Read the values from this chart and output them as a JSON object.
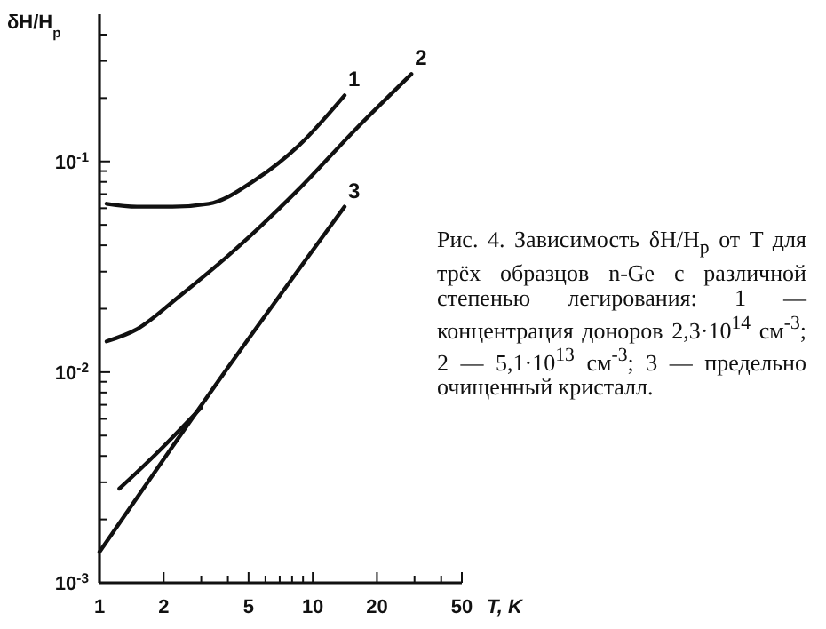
{
  "chart_data": {
    "type": "line",
    "xlabel": "T, K",
    "ylabel": "δH/H$_{p}$",
    "log": "xy",
    "grid": false,
    "legend": false,
    "marker": "none",
    "line_style": "solid",
    "xlim": [
      1,
      50
    ],
    "ylim": [
      0.001,
      0.5
    ],
    "xticks": [
      1,
      2,
      {
        "value": 3,
        "label": null
      },
      {
        "value": 4,
        "label": null
      },
      5,
      {
        "value": 6,
        "label": null
      },
      {
        "value": 7,
        "label": null
      },
      {
        "value": 8,
        "label": null
      },
      {
        "value": 9,
        "label": null
      },
      10,
      20,
      {
        "value": 30,
        "label": null
      },
      {
        "value": 40,
        "label": null
      },
      50
    ],
    "yticks": [
      {
        "value": 0.001,
        "label": "10$^{-3}$"
      },
      {
        "value": 0.002,
        "label": null
      },
      {
        "value": 0.003,
        "label": null
      },
      {
        "value": 0.004,
        "label": null
      },
      {
        "value": 0.005,
        "label": null
      },
      {
        "value": 0.006,
        "label": null
      },
      {
        "value": 0.007,
        "label": null
      },
      {
        "value": 0.008,
        "label": null
      },
      {
        "value": 0.009,
        "label": null
      },
      {
        "value": 0.01,
        "label": "10$^{-2}$"
      },
      {
        "value": 0.02,
        "label": null
      },
      {
        "value": 0.03,
        "label": null
      },
      {
        "value": 0.04,
        "label": null
      },
      {
        "value": 0.05,
        "label": null
      },
      {
        "value": 0.06,
        "label": null
      },
      {
        "value": 0.07,
        "label": null
      },
      {
        "value": 0.08,
        "label": null
      },
      {
        "value": 0.09,
        "label": null
      },
      {
        "value": 0.1,
        "label": "10$^{-1}$"
      },
      {
        "value": 0.2,
        "label": null
      },
      {
        "value": 0.3,
        "label": null
      },
      {
        "value": 0.4,
        "label": null
      }
    ],
    "series": [
      {
        "name": "1",
        "color": "#111111",
        "x": [
          1.08,
          1.5,
          2.2,
          3.25,
          5.4,
          8.6,
          14.1
        ],
        "values": [
          0.063,
          0.061,
          0.061,
          0.063,
          0.082,
          0.119,
          0.206
        ]
      },
      {
        "name": "2",
        "color": "#111111",
        "x": [
          1.08,
          1.5,
          2.34,
          4.43,
          8.5,
          16.2,
          29
        ],
        "values": [
          0.014,
          0.016,
          0.0227,
          0.039,
          0.073,
          0.145,
          0.26
        ]
      },
      {
        "name": "3",
        "color": "#111111",
        "x": [
          1,
          4,
          14.1
        ],
        "values": [
          0.0014,
          0.0105,
          0.061
        ]
      },
      {
        "color": "#111111",
        "x": [
          1.24,
          1.8,
          3
        ],
        "values": [
          0.0028,
          0.004,
          0.0068
        ]
      }
    ],
    "annotations": [
      "Рис. 4. Зависимость δH/H$_{p}$ от T для трёх образцов n-Ge с различной степенью легирования: 1 — концентрация доноров 2,3·10$^{14}$ см$^{-3}$; 2 — 5,1·10$^{13}$ см$^{-3}$; 3 — предельно очищенный кристалл."
    ]
  }
}
